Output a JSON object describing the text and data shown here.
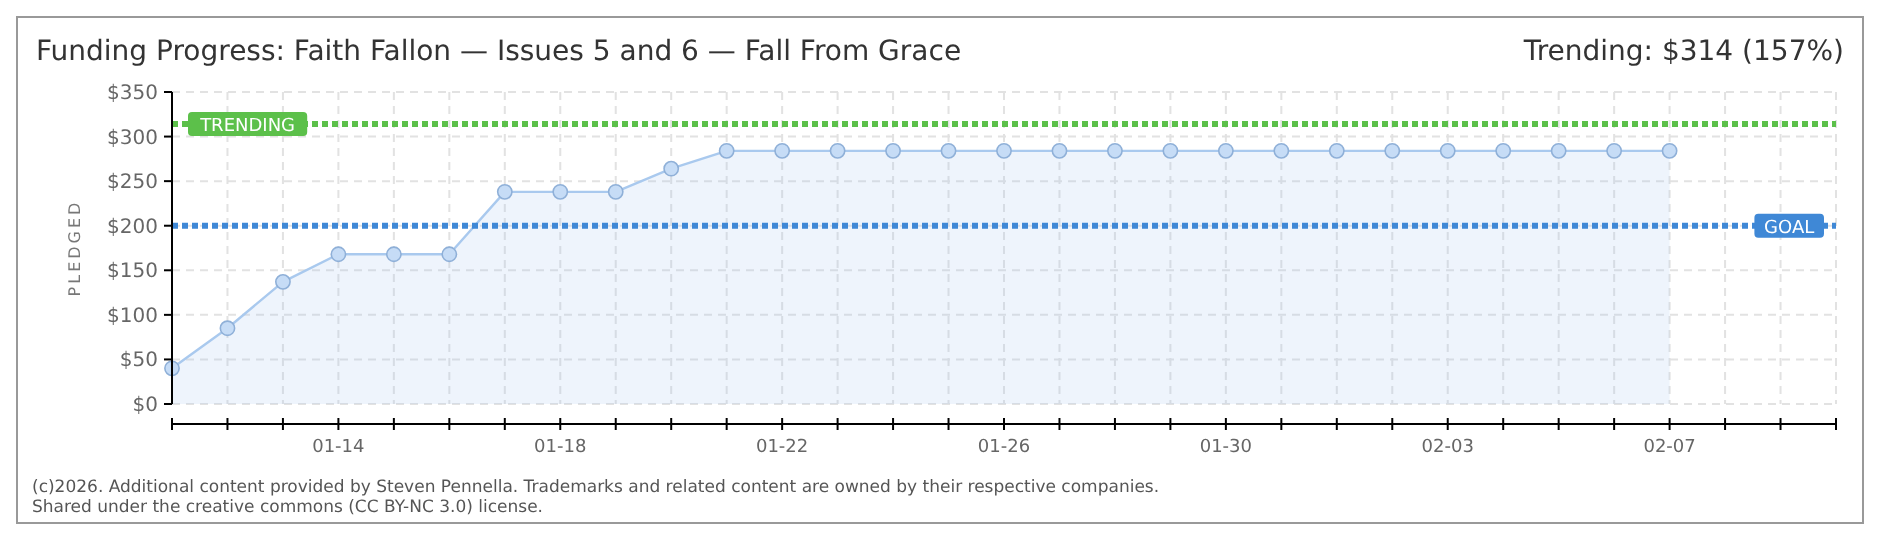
{
  "chart_data": {
    "type": "area",
    "title": "Funding Progress: Faith Fallon — Issues 5 and 6 — Fall From Grace",
    "subtitle": "Trending: $314 (157%)",
    "ylabel": "PLEDGED",
    "x": [
      "2026-01-11",
      "2026-01-12",
      "2026-01-13",
      "2026-01-14",
      "2026-01-15",
      "2026-01-16",
      "2026-01-17",
      "2026-01-18",
      "2026-01-19",
      "2026-01-20",
      "2026-01-21",
      "2026-01-22",
      "2026-01-23",
      "2026-01-24",
      "2026-01-25",
      "2026-01-26",
      "2026-01-27",
      "2026-01-28",
      "2026-01-29",
      "2026-01-30",
      "2026-01-31",
      "2026-02-01",
      "2026-02-02",
      "2026-02-03",
      "2026-02-04",
      "2026-02-05",
      "2026-02-06",
      "2026-02-07"
    ],
    "series": [
      {
        "color": "#a9c9ee",
        "values": [
          40,
          85,
          137,
          168,
          168,
          168,
          238,
          238,
          238,
          264,
          284,
          284,
          284,
          284,
          284,
          284,
          284,
          284,
          284,
          284,
          284,
          284,
          284,
          284,
          284,
          284,
          284,
          284
        ]
      }
    ],
    "xlim": [
      "2026-01-11",
      "2026-02-10"
    ],
    "xticks": [
      {
        "value": "2026-01-11",
        "label": null
      },
      {
        "value": "2026-01-12",
        "label": null
      },
      {
        "value": "2026-01-13",
        "label": null
      },
      {
        "value": "2026-01-14",
        "label": "01-14"
      },
      {
        "value": "2026-01-15",
        "label": null
      },
      {
        "value": "2026-01-16",
        "label": null
      },
      {
        "value": "2026-01-17",
        "label": null
      },
      {
        "value": "2026-01-18",
        "label": "01-18"
      },
      {
        "value": "2026-01-19",
        "label": null
      },
      {
        "value": "2026-01-20",
        "label": null
      },
      {
        "value": "2026-01-21",
        "label": null
      },
      {
        "value": "2026-01-22",
        "label": "01-22"
      },
      {
        "value": "2026-01-23",
        "label": null
      },
      {
        "value": "2026-01-24",
        "label": null
      },
      {
        "value": "2026-01-25",
        "label": null
      },
      {
        "value": "2026-01-26",
        "label": "01-26"
      },
      {
        "value": "2026-01-27",
        "label": null
      },
      {
        "value": "2026-01-28",
        "label": null
      },
      {
        "value": "2026-01-29",
        "label": null
      },
      {
        "value": "2026-01-30",
        "label": "01-30"
      },
      {
        "value": "2026-01-31",
        "label": null
      },
      {
        "value": "2026-02-01",
        "label": null
      },
      {
        "value": "2026-02-02",
        "label": null
      },
      {
        "value": "2026-02-03",
        "label": "02-03"
      },
      {
        "value": "2026-02-04",
        "label": null
      },
      {
        "value": "2026-02-05",
        "label": null
      },
      {
        "value": "2026-02-06",
        "label": null
      },
      {
        "value": "2026-02-07",
        "label": "02-07"
      },
      {
        "value": "2026-02-08",
        "label": null
      },
      {
        "value": "2026-02-09",
        "label": null
      },
      {
        "value": "2026-02-10",
        "label": null
      }
    ],
    "ylim": [
      0,
      350
    ],
    "yticks": [
      {
        "value": 0,
        "label": "$0"
      },
      {
        "value": 50,
        "label": "$50"
      },
      {
        "value": 100,
        "label": "$100"
      },
      {
        "value": 150,
        "label": "$150"
      },
      {
        "value": 200,
        "label": "$200"
      },
      {
        "value": 250,
        "label": "$250"
      },
      {
        "value": 300,
        "label": "$300"
      },
      {
        "value": 350,
        "label": "$350"
      }
    ],
    "grid": true,
    "marker": "circle",
    "ref_lines": [
      {
        "axis": "y",
        "value": 314,
        "label": "TRENDING",
        "color": "#5cc04a",
        "line_style": "dotted"
      },
      {
        "axis": "y",
        "value": 200,
        "label": "GOAL",
        "color": "#3f88d6",
        "line_style": "dotted"
      }
    ],
    "annotations": [
      "(c)2026. Additional content provided by Steven Pennella. Trademarks and related content are owned by their respective companies.",
      "Shared under the creative commons (CC BY-NC 3.0) license."
    ]
  }
}
